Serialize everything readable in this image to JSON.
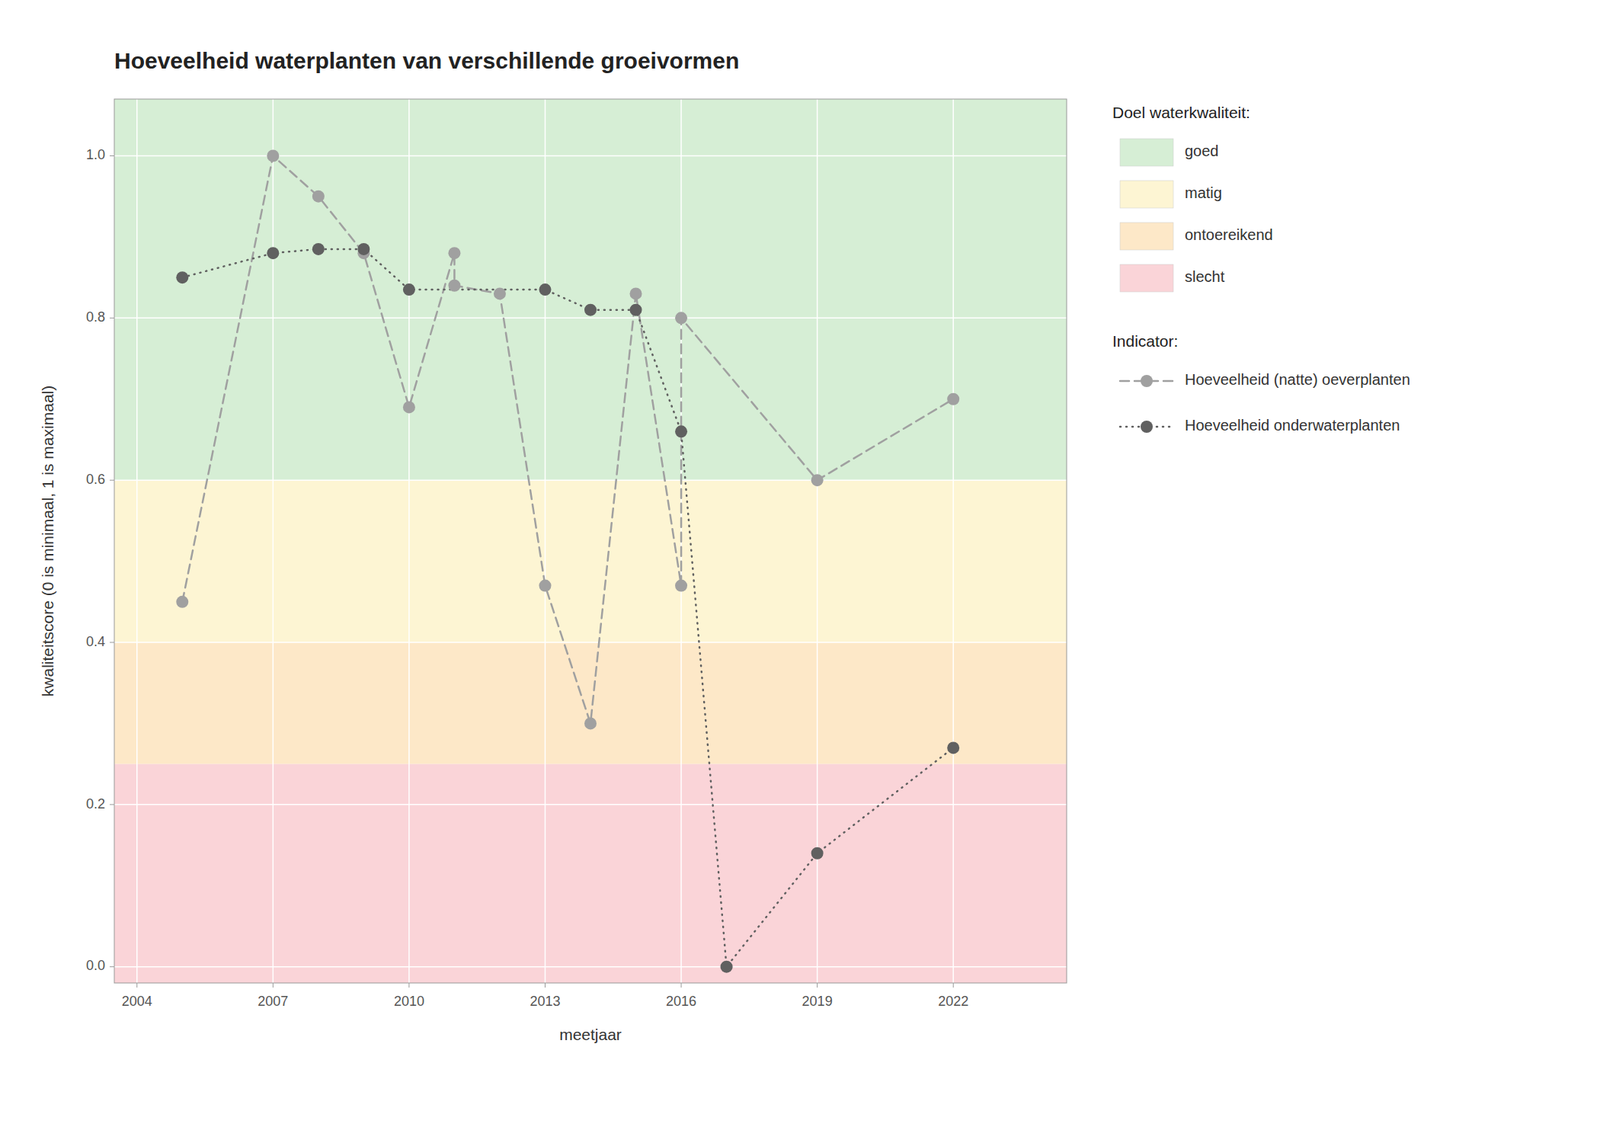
{
  "chart_data": {
    "type": "line",
    "title": "Hoeveelheid waterplanten van verschillende groeivormen",
    "xlabel": "meetjaar",
    "ylabel": "kwaliteitscore (0 is minimaal, 1 is maximaal)",
    "xlim": [
      2003.5,
      2024.5
    ],
    "ylim": [
      -0.02,
      1.07
    ],
    "xticks": [
      2004,
      2007,
      2010,
      2013,
      2016,
      2019,
      2022
    ],
    "yticks": [
      {
        "value": 0.0,
        "label": "0.0"
      },
      0.2,
      0.4,
      0.6,
      0.8,
      {
        "value": 1.0,
        "label": "1.0"
      }
    ],
    "grid": true,
    "legend": "right",
    "bands": {
      "title": "Doel waterkwaliteit:",
      "items": [
        {
          "name": "goed",
          "color": "#d6eed5"
        },
        {
          "name": "matig",
          "color": "#fdf5d3"
        },
        {
          "name": "ontoereikend",
          "color": "#fde8c8"
        },
        {
          "name": "slecht",
          "color": "#fad4d8"
        }
      ],
      "boundaries": [
        0.6,
        0.4,
        0.25
      ]
    },
    "legend_title": "Indicator:",
    "series": [
      {
        "name": "Hoeveelheid (natte) oeverplanten",
        "color": "#a0a0a0",
        "line_style": "dashed",
        "marker": "circle",
        "x": [
          2005,
          2007,
          2008,
          2009,
          2010,
          2011,
          2011,
          2012,
          2013,
          2014,
          2015,
          2016,
          2016,
          2019,
          2022
        ],
        "values": [
          0.45,
          1.0,
          0.95,
          0.88,
          0.69,
          0.88,
          0.84,
          0.83,
          0.47,
          0.3,
          0.83,
          0.47,
          0.8,
          0.6,
          0.7
        ]
      },
      {
        "name": "Hoeveelheid onderwaterplanten",
        "color": "#606060",
        "line_style": "dotted",
        "marker": "circle",
        "x": [
          2005,
          2007,
          2008,
          2009,
          2010,
          2013,
          2014,
          2015,
          2016,
          2017,
          2019,
          2022
        ],
        "values": [
          0.85,
          0.88,
          0.885,
          0.885,
          0.835,
          0.835,
          0.81,
          0.81,
          0.66,
          0.0,
          0.14,
          0.27
        ]
      }
    ]
  }
}
